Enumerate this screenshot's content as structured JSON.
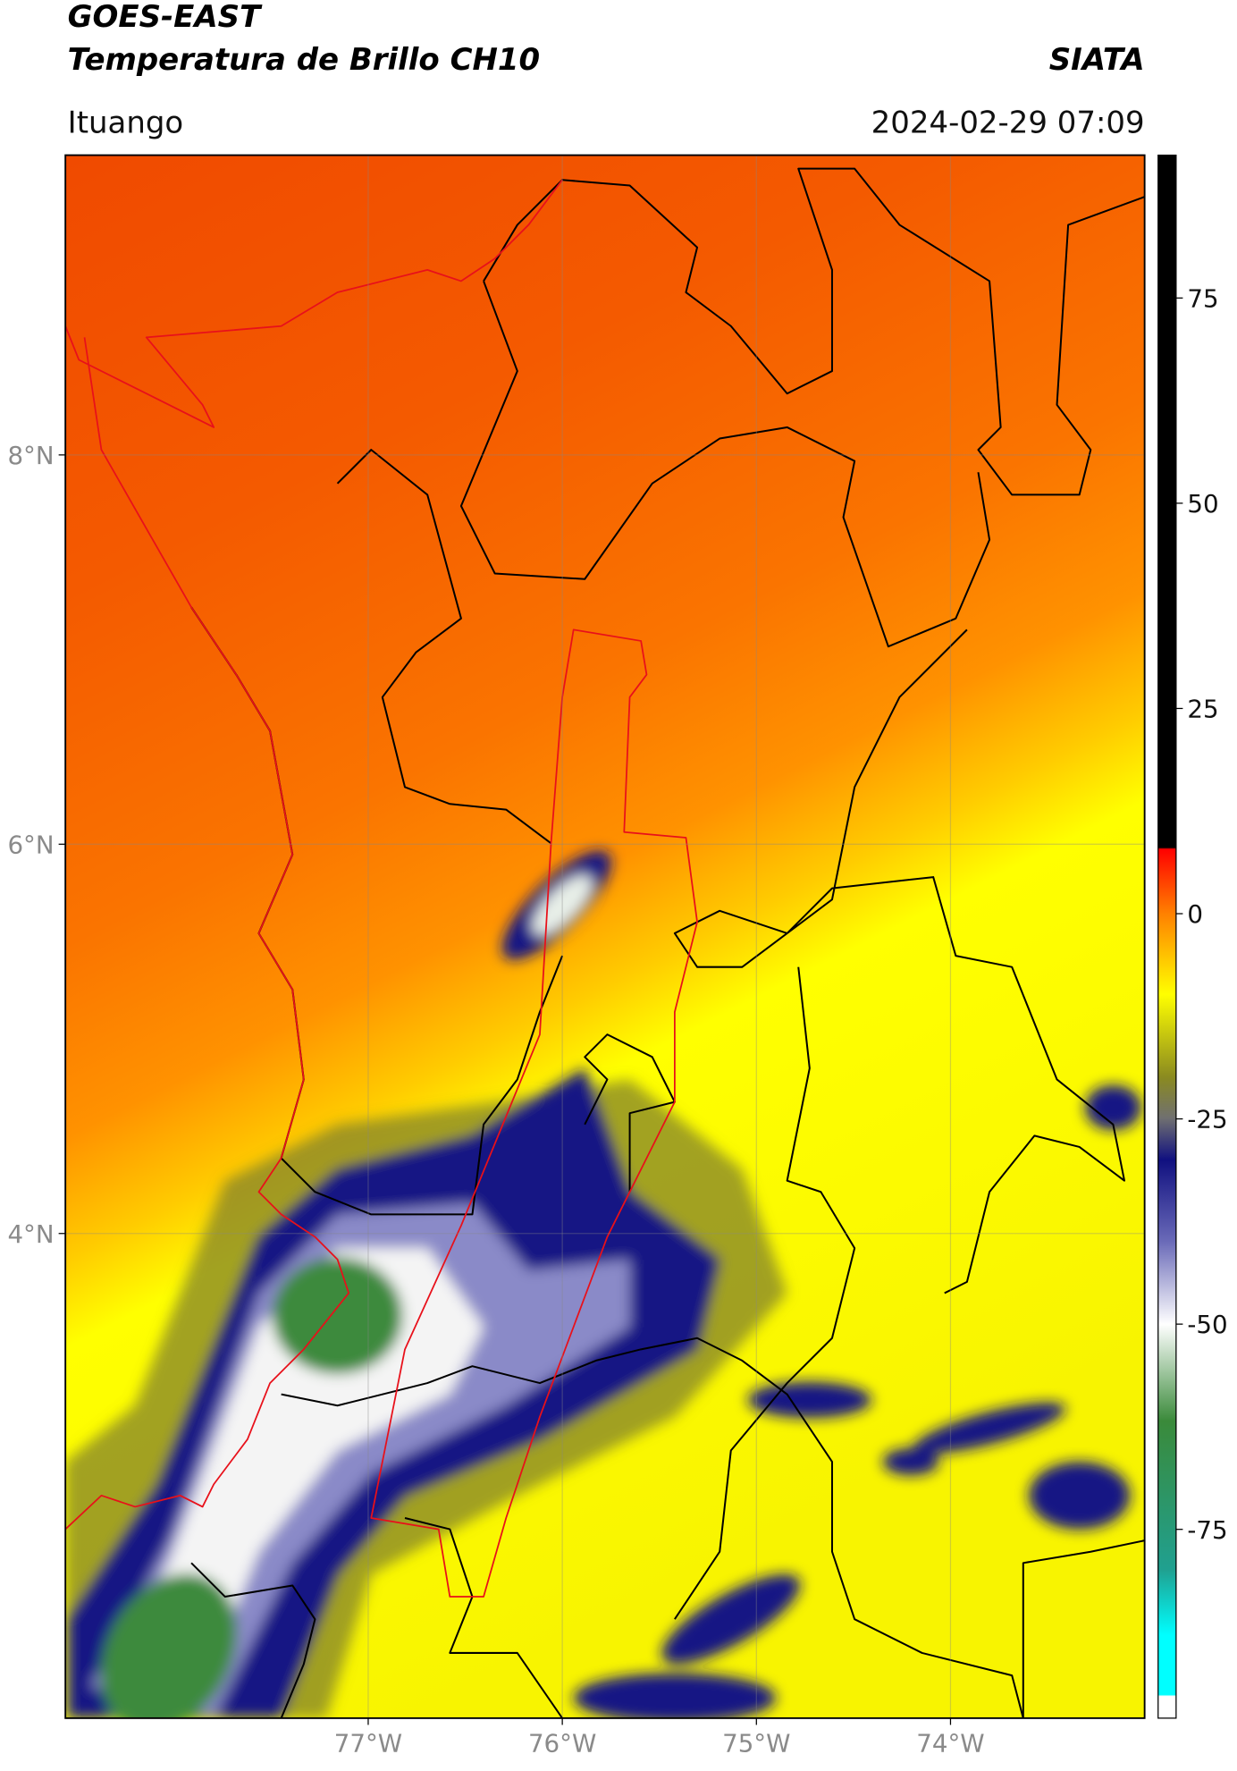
{
  "header": {
    "title_line1": "GOES-EAST",
    "title_line2": "Temperatura de Brillo CH10",
    "source": "SIATA",
    "location": "Ituango",
    "datetime": "2024-02-29 07:09"
  },
  "map": {
    "xlim": [
      -78.56,
      -73.0
    ],
    "ylim": [
      1.51,
      9.54
    ],
    "xticks": [
      {
        "value": -77,
        "label": "77°W"
      },
      {
        "value": -76,
        "label": "76°W"
      },
      {
        "value": -75,
        "label": "75°W"
      },
      {
        "value": -74,
        "label": "74°W"
      }
    ],
    "yticks": [
      {
        "value": 8,
        "label": "8°N"
      },
      {
        "value": 6,
        "label": "6°N"
      },
      {
        "value": 4,
        "label": "4°N"
      }
    ],
    "grid": true
  },
  "colorbar": {
    "clim": [
      -98,
      92.4
    ],
    "ticks": [
      75,
      50,
      25,
      0,
      -25,
      -50,
      -75
    ]
  }
}
